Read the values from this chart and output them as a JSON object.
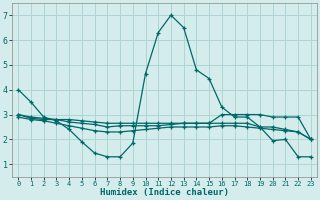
{
  "xlabel": "Humidex (Indice chaleur)",
  "background_color": "#d4ecec",
  "grid_color": "#aed4d4",
  "line_color": "#006868",
  "xlim": [
    -0.5,
    23.5
  ],
  "ylim": [
    0.5,
    7.5
  ],
  "xticks": [
    0,
    1,
    2,
    3,
    4,
    5,
    6,
    7,
    8,
    9,
    10,
    11,
    12,
    13,
    14,
    15,
    16,
    17,
    18,
    19,
    20,
    21,
    22,
    23
  ],
  "yticks": [
    1,
    2,
    3,
    4,
    5,
    6,
    7
  ],
  "x": [
    0,
    1,
    2,
    3,
    4,
    5,
    6,
    7,
    8,
    9,
    10,
    11,
    12,
    13,
    14,
    15,
    16,
    17,
    18,
    19,
    20,
    21,
    22,
    23
  ],
  "line1": [
    4.0,
    3.5,
    2.9,
    2.75,
    2.4,
    1.9,
    1.45,
    1.3,
    1.3,
    1.85,
    4.65,
    6.3,
    7.0,
    6.5,
    4.8,
    4.45,
    3.3,
    2.9,
    2.9,
    2.5,
    1.95,
    2.0,
    1.3,
    1.3
  ],
  "line2": [
    3.0,
    2.85,
    2.8,
    2.8,
    2.8,
    2.75,
    2.7,
    2.65,
    2.65,
    2.65,
    2.65,
    2.65,
    2.65,
    2.65,
    2.65,
    2.65,
    3.0,
    3.0,
    3.0,
    3.0,
    2.9,
    2.9,
    2.9,
    2.0
  ],
  "line3": [
    3.0,
    2.9,
    2.85,
    2.8,
    2.7,
    2.65,
    2.6,
    2.5,
    2.55,
    2.55,
    2.55,
    2.55,
    2.6,
    2.65,
    2.65,
    2.65,
    2.65,
    2.65,
    2.65,
    2.5,
    2.5,
    2.4,
    2.3,
    2.0
  ],
  "line4": [
    2.9,
    2.8,
    2.75,
    2.65,
    2.55,
    2.45,
    2.35,
    2.3,
    2.3,
    2.35,
    2.4,
    2.45,
    2.5,
    2.5,
    2.5,
    2.5,
    2.55,
    2.55,
    2.5,
    2.45,
    2.4,
    2.35,
    2.3,
    2.0
  ]
}
